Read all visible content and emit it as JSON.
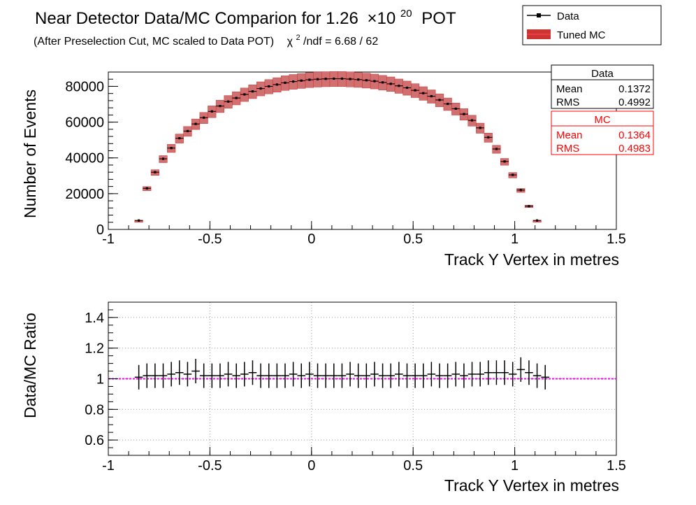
{
  "header": {
    "title": "Near Detector Data/MC Comparion for 1.26",
    "title_times": "×10",
    "title_exp": "20",
    "title_suffix": "POT",
    "subtitle": "(After Preselection Cut, MC scaled to Data POT)",
    "chi_symbol": "χ",
    "chi_exp": "2",
    "chi_text": "/ndf = 6.68 / 62"
  },
  "legend": {
    "entries": [
      {
        "label": "Data",
        "color": "#000000",
        "style": "marker-line"
      },
      {
        "label": "Tuned MC",
        "color": "#cc3333",
        "style": "band"
      }
    ]
  },
  "stats_boxes": [
    {
      "title": "Data",
      "color": "#000000",
      "rows": [
        {
          "label": "Mean",
          "value": "0.1372"
        },
        {
          "label": "RMS",
          "value": "0.4992"
        }
      ]
    },
    {
      "title": "MC",
      "color": "#ff0000",
      "rows": [
        {
          "label": "Mean",
          "value": "0.1364"
        },
        {
          "label": "RMS",
          "value": "0.4983"
        }
      ]
    }
  ],
  "colors": {
    "mc_band": "#cc3333",
    "mc_band_fill": "#d07070",
    "ratio_line": "#ff00ff",
    "data": "#000000"
  },
  "chart_data": [
    {
      "type": "bar",
      "xlabel": "Track Y Vertex in metres",
      "ylabel": "Number of Events",
      "xlim": [
        -1,
        1.5
      ],
      "ylim": [
        0,
        88000
      ],
      "grid": false,
      "x_ticks": [
        "-1",
        "-0.5",
        "0",
        "0.5",
        "1",
        "1.5"
      ],
      "y_ticks": [
        "0",
        "20000",
        "40000",
        "60000",
        "80000"
      ],
      "x": [
        -0.85,
        -0.81,
        -0.77,
        -0.73,
        -0.69,
        -0.65,
        -0.61,
        -0.57,
        -0.53,
        -0.49,
        -0.45,
        -0.41,
        -0.37,
        -0.33,
        -0.29,
        -0.25,
        -0.21,
        -0.17,
        -0.13,
        -0.09,
        -0.05,
        -0.01,
        0.03,
        0.07,
        0.11,
        0.15,
        0.19,
        0.23,
        0.27,
        0.31,
        0.35,
        0.39,
        0.43,
        0.47,
        0.51,
        0.55,
        0.59,
        0.63,
        0.67,
        0.71,
        0.75,
        0.79,
        0.83,
        0.87,
        0.91,
        0.95,
        0.99,
        1.03,
        1.07,
        1.11,
        1.15
      ],
      "series": [
        {
          "name": "Data",
          "values": [
            5000,
            23000,
            32000,
            39500,
            45500,
            51000,
            55000,
            59000,
            62500,
            66000,
            69000,
            71500,
            73500,
            75500,
            77200,
            78800,
            80000,
            81000,
            82000,
            82700,
            83200,
            83700,
            84000,
            84200,
            84300,
            84300,
            84100,
            83800,
            83400,
            82900,
            82200,
            81400,
            80300,
            79200,
            77800,
            76200,
            74500,
            72400,
            70200,
            67500,
            64500,
            61000,
            56800,
            51500,
            45000,
            38000,
            30500,
            22000,
            13000,
            5000,
            0
          ]
        },
        {
          "name": "Tuned MC",
          "values": [
            4900,
            22800,
            31800,
            39300,
            45300,
            50800,
            54800,
            58800,
            62300,
            65800,
            68800,
            71300,
            73300,
            75300,
            77000,
            78600,
            79800,
            80800,
            81800,
            82500,
            83000,
            83500,
            83800,
            84000,
            84100,
            84100,
            83900,
            83600,
            83200,
            82700,
            82000,
            81200,
            80100,
            79000,
            77600,
            76000,
            74300,
            72200,
            70000,
            67300,
            64300,
            60800,
            56600,
            51300,
            44800,
            37800,
            30300,
            21800,
            12900,
            4900,
            0
          ],
          "uncertainty_fraction": 0.05
        }
      ]
    },
    {
      "type": "scatter",
      "xlabel": "Track Y Vertex in metres",
      "ylabel": "Data/MC Ratio",
      "xlim": [
        -1,
        1.5
      ],
      "ylim": [
        0.5,
        1.5
      ],
      "grid": true,
      "x_ticks": [
        "-1",
        "-0.5",
        "0",
        "0.5",
        "1",
        "1.5"
      ],
      "y_ticks": [
        "0.6",
        "0.8",
        "1",
        "1.2",
        "1.4"
      ],
      "reference_line": 1,
      "x": [
        -0.85,
        -0.81,
        -0.77,
        -0.73,
        -0.69,
        -0.65,
        -0.61,
        -0.57,
        -0.53,
        -0.49,
        -0.45,
        -0.41,
        -0.37,
        -0.33,
        -0.29,
        -0.25,
        -0.21,
        -0.17,
        -0.13,
        -0.09,
        -0.05,
        -0.01,
        0.03,
        0.07,
        0.11,
        0.15,
        0.19,
        0.23,
        0.27,
        0.31,
        0.35,
        0.39,
        0.43,
        0.47,
        0.51,
        0.55,
        0.59,
        0.63,
        0.67,
        0.71,
        0.75,
        0.79,
        0.83,
        0.87,
        0.91,
        0.95,
        0.99,
        1.03,
        1.07,
        1.11,
        1.15
      ],
      "series": [
        {
          "name": "Data",
          "values": [
            1.01,
            1.02,
            1.02,
            1.02,
            1.03,
            1.04,
            1.03,
            1.05,
            1.02,
            1.02,
            1.02,
            1.03,
            1.02,
            1.03,
            1.04,
            1.02,
            1.02,
            1.02,
            1.02,
            1.03,
            1.02,
            1.03,
            1.02,
            1.02,
            1.02,
            1.02,
            1.03,
            1.02,
            1.02,
            1.03,
            1.02,
            1.02,
            1.03,
            1.02,
            1.02,
            1.02,
            1.03,
            1.02,
            1.02,
            1.03,
            1.02,
            1.03,
            1.03,
            1.04,
            1.04,
            1.04,
            1.03,
            1.06,
            1.04,
            1.02,
            1.01
          ],
          "errors": [
            0.08,
            0.08,
            0.08,
            0.08,
            0.08,
            0.08,
            0.08,
            0.08,
            0.08,
            0.08,
            0.08,
            0.08,
            0.08,
            0.08,
            0.08,
            0.08,
            0.08,
            0.08,
            0.08,
            0.08,
            0.08,
            0.08,
            0.08,
            0.08,
            0.08,
            0.08,
            0.08,
            0.08,
            0.08,
            0.08,
            0.08,
            0.08,
            0.08,
            0.08,
            0.08,
            0.08,
            0.08,
            0.08,
            0.08,
            0.08,
            0.08,
            0.08,
            0.08,
            0.08,
            0.08,
            0.08,
            0.08,
            0.08,
            0.08,
            0.08,
            0.08
          ]
        }
      ]
    }
  ]
}
